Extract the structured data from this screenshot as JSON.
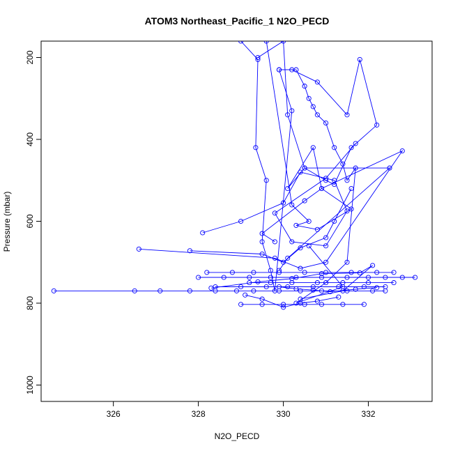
{
  "chart_data": {
    "type": "line",
    "title": "ATOM3 Northeast_Pacific_1 N2O_PECD",
    "xlabel": "N2O_PECD",
    "ylabel": "Pressure (mbar)",
    "xlim": [
      324.3,
      333.5
    ],
    "ylim": [
      1040,
      160
    ],
    "y_reversed": true,
    "x_ticks": [
      326,
      328,
      330,
      332
    ],
    "y_ticks": [
      200,
      400,
      600,
      800,
      1000
    ],
    "grid": false,
    "legend": "none",
    "line_color": "#0000ff",
    "marker": "open-circle",
    "series": [
      {
        "x": [
          329.0,
          329.4,
          329.35,
          329.6,
          329.5,
          329.7,
          329.8,
          330.2,
          329.9,
          330.3,
          330.5,
          330.6,
          330.7,
          330.8,
          331.0,
          331.2,
          331.4,
          331.5,
          331.7,
          331.5,
          331.0,
          330.3,
          331.4,
          330.6
        ],
        "y": [
          160,
          205,
          420,
          500,
          650,
          720,
          770,
          330,
          230,
          230,
          270,
          300,
          320,
          340,
          360,
          420,
          460,
          500,
          470,
          700,
          750,
          800,
          760,
          660
        ]
      },
      {
        "x": [
          329.4,
          330.0,
          330.1,
          330.5,
          331.0,
          331.2,
          331.6,
          332.2,
          331.8,
          331.5,
          330.8,
          330.2,
          329.9
        ],
        "y": [
          200,
          160,
          340,
          470,
          500,
          510,
          420,
          365,
          205,
          340,
          260,
          230,
          230
        ]
      },
      {
        "x": [
          326.6,
          329.8,
          330.4,
          331.0,
          332.8,
          330.9,
          330.7,
          330.1,
          330.5,
          332.5,
          330.1,
          329.9
        ],
        "y": [
          668,
          690,
          715,
          700,
          428,
          520,
          420,
          520,
          470,
          470,
          690,
          720
        ]
      },
      {
        "x": [
          328.1,
          329.0,
          330.0,
          330.4,
          331.2,
          331.5,
          331.0,
          330.2,
          329.8,
          331.0,
          331.7
        ],
        "y": [
          628,
          600,
          555,
          480,
          500,
          575,
          660,
          650,
          580,
          495,
          410
        ]
      },
      {
        "x": [
          327.8,
          329.5,
          330.0,
          330.4,
          331.0,
          331.2,
          331.6
        ],
        "y": [
          672,
          680,
          700,
          665,
          640,
          600,
          520
        ]
      },
      {
        "x": [
          329.6,
          330.2,
          330.6,
          330.3,
          330.8,
          331.6,
          330.9,
          330.5,
          329.5,
          329.8
        ],
        "y": [
          160,
          560,
          600,
          610,
          620,
          570,
          520,
          550,
          630,
          650
        ]
      },
      {
        "x": [
          324.6,
          326.5,
          327.1,
          327.8,
          328.4,
          328.9,
          329.3,
          329.9,
          330.4,
          330.9,
          331.5,
          332.1,
          332.4
        ],
        "y": [
          770,
          770,
          770,
          770,
          770,
          770,
          770,
          770,
          770,
          770,
          770,
          770,
          770
        ]
      },
      {
        "x": [
          328.0,
          328.6,
          329.2,
          329.7,
          330.3,
          330.9,
          331.5,
          332.0,
          332.4,
          332.8,
          333.1
        ],
        "y": [
          737,
          737,
          737,
          737,
          737,
          737,
          737,
          737,
          737,
          737,
          737
        ]
      },
      {
        "x": [
          328.2,
          328.8,
          329.3,
          329.9,
          330.5,
          331.0,
          331.6,
          332.2,
          332.6
        ],
        "y": [
          725,
          725,
          725,
          725,
          725,
          725,
          725,
          725,
          725
        ]
      },
      {
        "x": [
          328.4,
          329.0,
          329.6,
          330.1,
          330.7,
          331.3,
          331.9,
          332.4
        ],
        "y": [
          760,
          760,
          760,
          760,
          760,
          760,
          760,
          760
        ]
      },
      {
        "x": [
          329.2,
          329.7,
          330.2,
          330.8,
          331.4,
          332.0,
          332.6
        ],
        "y": [
          750,
          750,
          750,
          750,
          750,
          750,
          750
        ]
      },
      {
        "x": [
          329.0,
          329.5,
          330.0,
          330.5,
          330.9,
          331.4,
          331.9
        ],
        "y": [
          803,
          803,
          803,
          803,
          803,
          803,
          803
        ]
      },
      {
        "x": [
          329.1,
          329.5,
          330.0,
          330.4,
          330.8,
          331.3
        ],
        "y": [
          780,
          790,
          810,
          800,
          795,
          785
        ]
      },
      {
        "x": [
          329.9,
          330.3,
          330.7,
          331.1,
          331.7,
          332.2
        ],
        "y": [
          760,
          765,
          768,
          772,
          766,
          762
        ]
      },
      {
        "x": [
          328.3,
          329.4,
          330.2,
          330.9,
          331.8,
          332.1,
          331.4,
          330.4
        ],
        "y": [
          763,
          748,
          740,
          728,
          726,
          708,
          770,
          790
        ]
      }
    ]
  }
}
